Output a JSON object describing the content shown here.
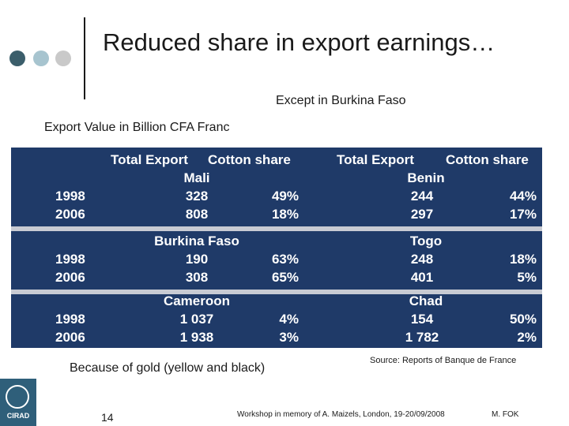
{
  "slide": {
    "title": "Reduced share in export earnings…",
    "subtitle": "Except in Burkina Faso",
    "caption": "Export Value in Billion CFA Franc",
    "note_left": "Because of gold (yellow and black)",
    "note_right": "Source: Reports of Banque de France",
    "page_number": "14",
    "footer_center": "Workshop in memory of A. Maizels, London, 19-20/09/2008",
    "footer_right": "M. FOK",
    "logo_text": "CIRAD"
  },
  "table": {
    "headers": [
      "Total Export",
      "Cotton share",
      "Total Export",
      "Cotton share"
    ],
    "groups": [
      {
        "left_country": "Mali",
        "right_country": "Benin",
        "rows": [
          {
            "year": "1998",
            "l_total": "328",
            "l_share": "49%",
            "r_total": "244",
            "r_share": "44%"
          },
          {
            "year": "2006",
            "l_total": "808",
            "l_share": "18%",
            "r_total": "297",
            "r_share": "17%"
          }
        ]
      },
      {
        "left_country": "Burkina Faso",
        "right_country": "Togo",
        "rows": [
          {
            "year": "1998",
            "l_total": "190",
            "l_share": "63%",
            "r_total": "248",
            "r_share": "18%"
          },
          {
            "year": "2006",
            "l_total": "308",
            "l_share": "65%",
            "r_total": "401",
            "r_share": "5%"
          }
        ]
      },
      {
        "left_country": "Cameroon",
        "right_country": "Chad",
        "rows": [
          {
            "year": "1998",
            "l_total": "1 037",
            "l_share": "4%",
            "r_total": "154",
            "r_share": "50%"
          },
          {
            "year": "2006",
            "l_total": "1 938",
            "l_share": "3%",
            "r_total": "1 782",
            "r_share": "2%"
          }
        ]
      }
    ]
  },
  "colors": {
    "table_bg": "#1f3a68",
    "separator": "#c8cbd3",
    "dot_dark": "#3b5e6b",
    "dot_light": "#a7c4cf",
    "dot_grey": "#c9c9c9"
  }
}
